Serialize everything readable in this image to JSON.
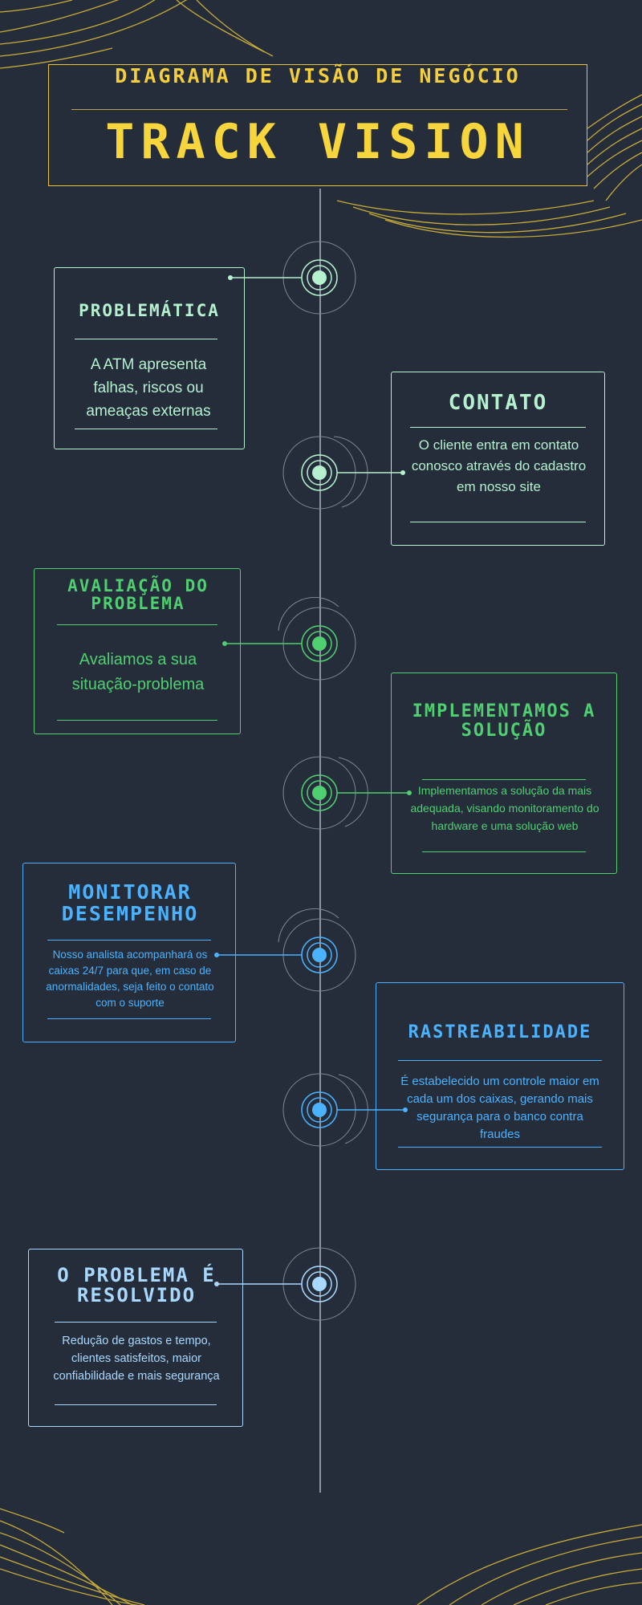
{
  "header": {
    "subtitle": "DIAGRAMA DE VISÃO DE NEGÓCIO",
    "title": "TRACK VISION"
  },
  "steps": [
    {
      "title": "PROBLEMÁTICA",
      "text": "A ATM apresenta falhas, riscos ou ameaças externas",
      "color": "#b5f0cf"
    },
    {
      "title": "CONTATO",
      "text": "O cliente entra em contato conosco através do cadastro em nosso site",
      "color": "#b5f0cf"
    },
    {
      "title": "AVALIAÇÃO DO PROBLEMA",
      "text": "Avaliamos a sua situação-problema",
      "color": "#4fcf70"
    },
    {
      "title": "IMPLEMENTAMOS A SOLUÇÃO",
      "text": "Implementamos a solução da mais adequada, visando monitoramento do hardware e uma solução web",
      "color": "#4fcf70"
    },
    {
      "title": "MONITORAR DESEMPENHO",
      "text": "Nosso analista acompanhará os caixas 24/7 para que, em caso de anormalidades, seja feito o contato com o suporte",
      "color": "#4bb2ff"
    },
    {
      "title": "RASTREABILIDADE",
      "text": "É estabelecido um controle maior em cada um dos caixas,  gerando mais segurança para o banco contra fraudes",
      "color": "#4bb2ff"
    },
    {
      "title": "O PROBLEMA É RESOLVIDO",
      "text": "Redução de gastos e tempo, clientes satisfeitos, maior confiabilidade e mais segurança",
      "color": "#a9d8ff"
    }
  ],
  "colors": {
    "background": "#252d3b",
    "accent": "#f4ce3c",
    "timeline": "#8b96a1"
  }
}
